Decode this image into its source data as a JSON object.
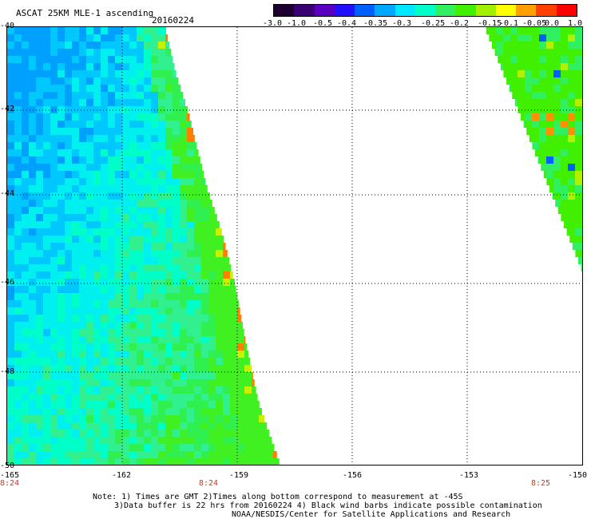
{
  "header": {
    "title": "ASCAT 25KM MLE-1 ascending",
    "date": "20160224"
  },
  "colorbar": {
    "labels": [
      "-3.0",
      "-1.0",
      "-0.5",
      "-0.4",
      "-0.35",
      "-0.3",
      "-0.25",
      "-0.2",
      "-0.15",
      "-0.1",
      "-0.05",
      "0.0",
      "1.0"
    ],
    "colors": [
      "#1e0030",
      "#3a0070",
      "#5a00c0",
      "#2010ff",
      "#0060ff",
      "#00a8ff",
      "#00e8ff",
      "#00ffc8",
      "#30f060",
      "#40f000",
      "#a0f000",
      "#ffff00",
      "#ffa000",
      "#ff4000",
      "#ff0000"
    ]
  },
  "map": {
    "lon_labels": [
      "-165",
      "-162",
      "-159",
      "-156",
      "-153",
      "-150"
    ],
    "lat_labels": [
      "-40",
      "-42",
      "-44",
      "-46",
      "-48",
      "-50"
    ],
    "time_labels": [
      "8:24",
      "8:24",
      "8:25"
    ],
    "lon_range": [
      -165,
      -150
    ],
    "lat_range": [
      -50,
      -40
    ]
  },
  "notes": {
    "line1": "Note: 1) Times are GMT 2)Times along bottom correspond to measurement at -45S",
    "line2": "3)Data buffer is 22 hrs from 20160224 4) Black wind barbs indicate possible contamination",
    "line3": "NOAA/NESDIS/Center for Satellite Applications and Research"
  }
}
